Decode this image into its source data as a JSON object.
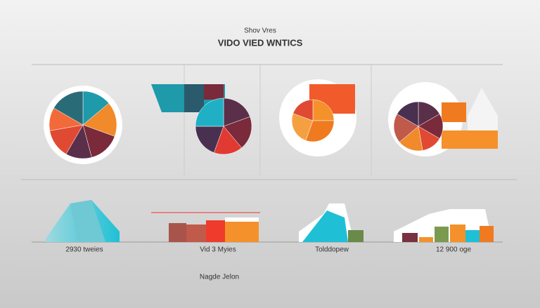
{
  "header": {
    "subtitle": "Shov Vres",
    "title": "VIDO VIED WNTICS"
  },
  "captions": [
    "2930 tweies",
    "Vid 3 Myies",
    "Tolddopew",
    "12 900 oge"
  ],
  "footer": "Nagde Jelon"
}
